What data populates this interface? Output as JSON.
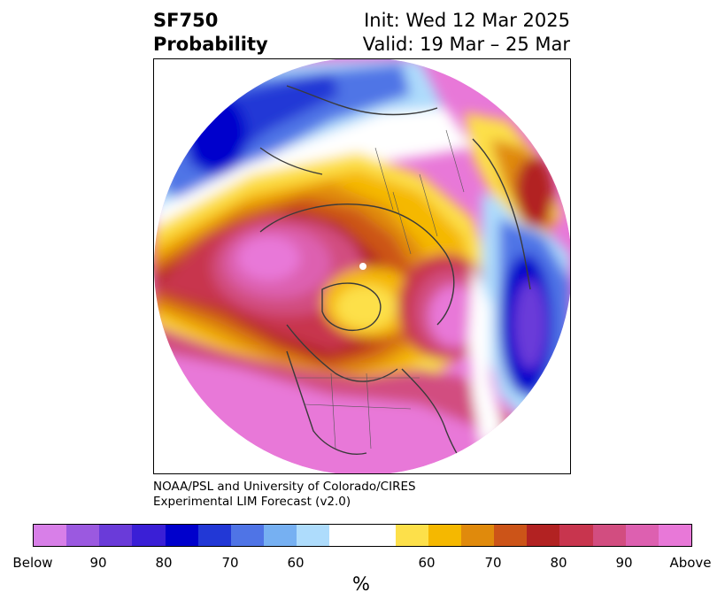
{
  "header": {
    "variable": "SF750",
    "product": "Probability",
    "init": "Init: Wed 12 Mar 2025",
    "valid": "Valid: 19 Mar – 25 Mar"
  },
  "credit": {
    "line1": "NOAA/PSL and University of Colorado/CIRES",
    "line2": "Experimental LIM Forecast (v2.0)"
  },
  "map": {
    "projection": "north-polar-stereographic",
    "region": "Northern Hemisphere"
  },
  "colorbar": {
    "units": "%",
    "colors": [
      "#d87fe8",
      "#9b59e0",
      "#6a3bd9",
      "#3a1fd6",
      "#0000cc",
      "#2238d6",
      "#4f74e6",
      "#76b0f2",
      "#aedcfc",
      "#ffffff",
      "#fde04a",
      "#f5b800",
      "#e08a0c",
      "#cc5418",
      "#b22222",
      "#c8354e",
      "#d24d80",
      "#dd60b0",
      "#e878d8"
    ],
    "tick_labels": [
      "Below",
      "90",
      "80",
      "70",
      "60",
      "60",
      "70",
      "80",
      "90",
      "Above"
    ]
  }
}
